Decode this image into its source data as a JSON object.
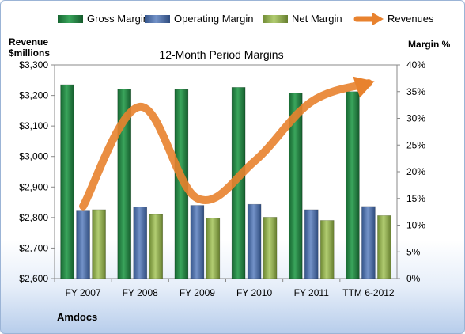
{
  "chart_data": {
    "type": "bar",
    "title": "12-Month Period Margins",
    "categories": [
      "FY 2007",
      "FY 2008",
      "FY 2009",
      "FY 2010",
      "FY 2011",
      "TTM 6-2012"
    ],
    "series": [
      {
        "name": "Gross Margin",
        "axis": "right",
        "values": [
          36.3,
          35.5,
          35.4,
          35.8,
          34.7,
          35.0
        ]
      },
      {
        "name": "Operating Margin",
        "axis": "right",
        "values": [
          12.8,
          13.4,
          13.7,
          13.9,
          12.9,
          13.5
        ]
      },
      {
        "name": "Net Margin",
        "axis": "right",
        "values": [
          12.9,
          12.0,
          11.3,
          11.5,
          10.9,
          11.8
        ]
      },
      {
        "name": "Revenues",
        "type": "line",
        "axis": "left",
        "values": [
          2837,
          3163,
          2863,
          2984,
          3179,
          3240
        ]
      }
    ],
    "left_axis": {
      "title_lines": [
        "Revenue",
        "$millions"
      ],
      "min": 2600,
      "max": 3300,
      "step": 100,
      "tick_labels": [
        "$2,600",
        "$2,700",
        "$2,800",
        "$2,900",
        "$3,000",
        "$3,100",
        "$3,200",
        "$3,300"
      ]
    },
    "right_axis": {
      "title": "Margin %",
      "min": 0,
      "max": 40,
      "step": 5,
      "tick_labels": [
        "0%",
        "5%",
        "10%",
        "15%",
        "20%",
        "25%",
        "30%",
        "35%",
        "40%"
      ]
    },
    "legend_position": "top",
    "grid": false,
    "colors": {
      "gross": "#1e7a3c",
      "gross_light": "#3fae61",
      "operating": "#3e5f97",
      "operating_light": "#6f8fc6",
      "net": "#7f9a3f",
      "net_light": "#a8c466",
      "revenues": "#e8822e"
    }
  },
  "footer": {
    "company": "Amdocs"
  }
}
